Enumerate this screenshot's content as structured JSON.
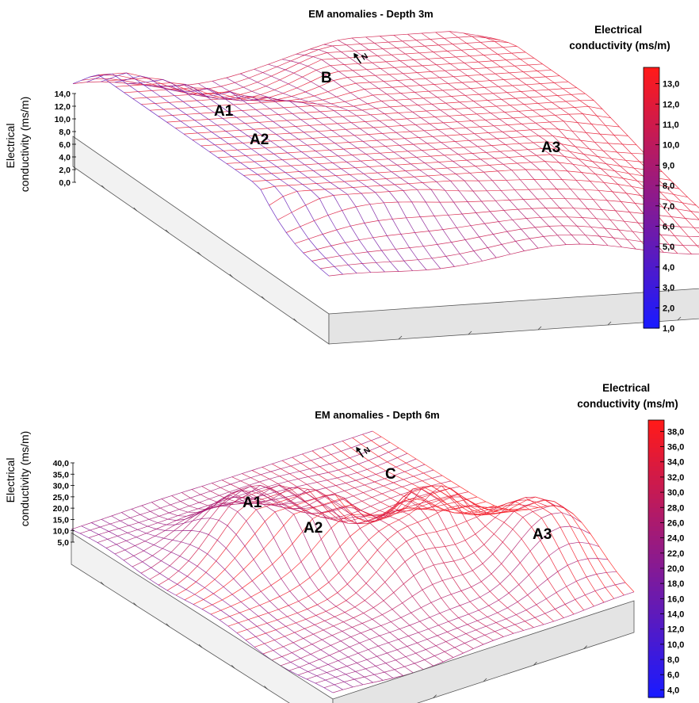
{
  "chart_data": [
    {
      "type": "surface",
      "title": "EM anomalies - Depth  3m",
      "zlabel": "Electrical\nconductivity (ms/m)",
      "zticks": [
        "14,0",
        "12,0",
        "10,0",
        "8,0",
        "6,0",
        "4,0",
        "2,0",
        "0,0"
      ],
      "zlim": [
        0,
        14
      ],
      "colorbar": {
        "title": "Electrical\nconductivity (ms/m)",
        "ticks": [
          "13,0",
          "12,0",
          "11,0",
          "10,0",
          "9,0",
          "8,0",
          "7,0",
          "6,0",
          "5,0",
          "4,0",
          "3,0",
          "2,0",
          "1,0"
        ],
        "range": [
          1,
          13.8
        ],
        "colors": [
          "#1a1aff",
          "#ff1a1a"
        ]
      },
      "anomalies": [
        {
          "label": "A1",
          "value": 11.0
        },
        {
          "label": "A2",
          "value": 9.5
        },
        {
          "label": "A3",
          "value": 12.5
        },
        {
          "label": "B",
          "value": 10.0
        }
      ],
      "north_marker": "N"
    },
    {
      "type": "surface",
      "title": "EM anomalies - Depth  6m",
      "zlabel": "Electrical\nconductivity (ms/m)",
      "zticks": [
        "40,0",
        "35,0",
        "30,0",
        "25,0",
        "20,0",
        "15,0",
        "10,0",
        "5,0"
      ],
      "zlim": [
        5,
        40
      ],
      "colorbar": {
        "title": "Electrical\nconductivity (ms/m)",
        "ticks": [
          "38,0",
          "36,0",
          "34,0",
          "32,0",
          "30,0",
          "28,0",
          "26,0",
          "24,0",
          "22,0",
          "20,0",
          "18,0",
          "16,0",
          "14,0",
          "12,0",
          "10,0",
          "8,0",
          "6,0",
          "4,0"
        ],
        "range": [
          3,
          39.5
        ],
        "colors": [
          "#1a1aff",
          "#ff1a1a"
        ]
      },
      "anomalies": [
        {
          "label": "A1",
          "value": 30.0
        },
        {
          "label": "A2",
          "value": 25.0
        },
        {
          "label": "A3",
          "value": 36.0
        },
        {
          "label": "C",
          "value": 30.0
        }
      ],
      "north_marker": "N"
    }
  ]
}
